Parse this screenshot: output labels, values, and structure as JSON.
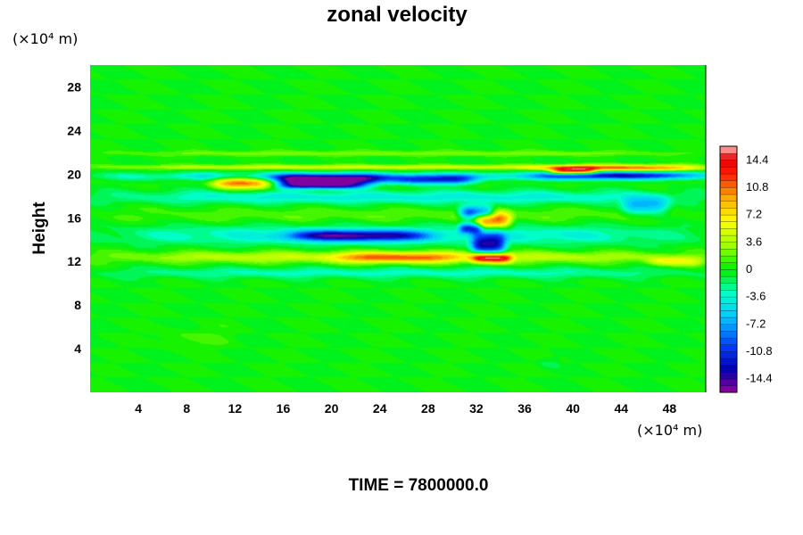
{
  "chart_data": {
    "type": "heatmap",
    "title": "zonal velocity",
    "ylabel": "Height",
    "x_unit_label": "(×10⁴ m)",
    "y_unit_label": "(×10⁴ m)",
    "x_ticks": [
      "4",
      "8",
      "12",
      "16",
      "20",
      "24",
      "28",
      "32",
      "36",
      "40",
      "44",
      "48"
    ],
    "y_ticks": [
      "4",
      "8",
      "12",
      "16",
      "20",
      "24",
      "28"
    ],
    "xlim": [
      0,
      51
    ],
    "ylim": [
      0,
      30
    ],
    "value_range": [
      -16.2,
      16.2
    ],
    "colorbar": {
      "labels": [
        "14.4",
        "10.8",
        "7.2",
        "3.6",
        "0",
        "-3.6",
        "-7.2",
        "-10.8",
        "-14.4"
      ],
      "levels": 36
    },
    "features": [
      {
        "x": [
          0,
          51
        ],
        "y": [
          19.4,
          20.2
        ],
        "value": -5
      },
      {
        "x": [
          0,
          51
        ],
        "y": [
          20.4,
          20.9
        ],
        "value": 5
      },
      {
        "x": [
          0,
          51
        ],
        "y": [
          21.6,
          22.2
        ],
        "value": 2.5
      },
      {
        "x": [
          10,
          16
        ],
        "y": [
          18.6,
          19.8
        ],
        "value": 11
      },
      {
        "x": [
          14,
          25
        ],
        "y": [
          19.0,
          20.0
        ],
        "value": -14.5
      },
      {
        "x": [
          15,
          23
        ],
        "y": [
          18.6,
          19.4
        ],
        "value": -13
      },
      {
        "x": [
          25,
          32
        ],
        "y": [
          19.0,
          19.9
        ],
        "value": -10
      },
      {
        "x": [
          37,
          51
        ],
        "y": [
          19.5,
          20.3
        ],
        "value": -9
      },
      {
        "x": [
          37,
          51
        ],
        "y": [
          20.2,
          20.9
        ],
        "value": 8
      },
      {
        "x": [
          38,
          42
        ],
        "y": [
          19.9,
          20.6
        ],
        "value": 12
      },
      {
        "x": [
          0,
          51
        ],
        "y": [
          17.2,
          18.6
        ],
        "value": -4
      },
      {
        "x": [
          0,
          51
        ],
        "y": [
          15.5,
          17.0
        ],
        "value": 1.5
      },
      {
        "x": [
          30.5,
          33.5
        ],
        "y": [
          15.8,
          17.2
        ],
        "value": -11
      },
      {
        "x": [
          31.8,
          35
        ],
        "y": [
          15.0,
          16.6
        ],
        "value": 11
      },
      {
        "x": [
          30.5,
          32.5
        ],
        "y": [
          14.5,
          15.6
        ],
        "value": -9
      },
      {
        "x": [
          31.5,
          34.5
        ],
        "y": [
          12.5,
          14.6
        ],
        "value": -12
      },
      {
        "x": [
          31.5,
          35
        ],
        "y": [
          11.8,
          12.8
        ],
        "value": 13
      },
      {
        "x": [
          16,
          28
        ],
        "y": [
          13.8,
          14.9
        ],
        "value": -11
      },
      {
        "x": [
          0,
          51
        ],
        "y": [
          13.4,
          15.4
        ],
        "value": -4
      },
      {
        "x": [
          0,
          51
        ],
        "y": [
          11.8,
          13.0
        ],
        "value": 4.5
      },
      {
        "x": [
          20,
          31
        ],
        "y": [
          11.8,
          12.9
        ],
        "value": 7
      },
      {
        "x": [
          46,
          51
        ],
        "y": [
          11.5,
          12.5
        ],
        "value": 5
      },
      {
        "x": [
          0,
          51
        ],
        "y": [
          10.4,
          11.5
        ],
        "value": -3
      },
      {
        "x": [
          44,
          48
        ],
        "y": [
          16.2,
          18.0
        ],
        "value": -7
      },
      {
        "x": [
          5,
          12
        ],
        "y": [
          4,
          6
        ],
        "value": 1
      },
      {
        "x": [
          37,
          39
        ],
        "y": [
          2,
          3.5
        ],
        "value": -1
      }
    ]
  },
  "footer": {
    "time_label": "TIME = 7800000.0"
  }
}
